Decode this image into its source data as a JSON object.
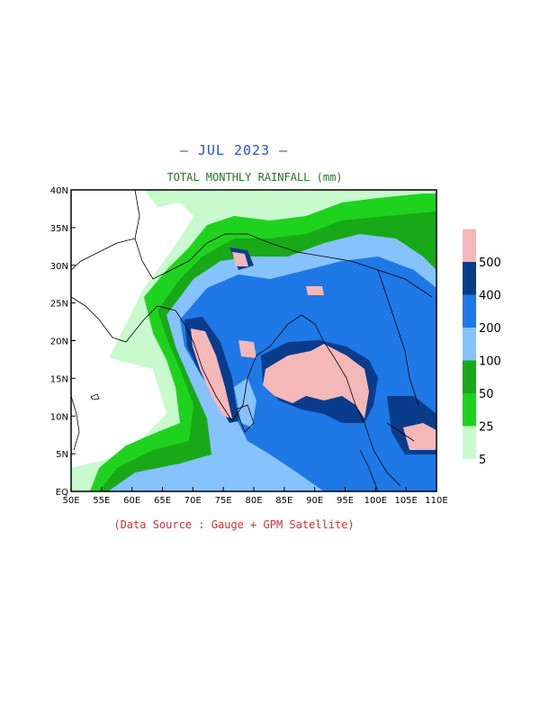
{
  "header": {
    "title": "– JUL 2023 –",
    "subtitle": "TOTAL MONTHLY RAINFALL (mm)"
  },
  "footer": {
    "source": "(Data Source : Gauge + GPM Satellite)"
  },
  "axes": {
    "x_ticks": [
      "50E",
      "55E",
      "60E",
      "65E",
      "70E",
      "75E",
      "80E",
      "85E",
      "90E",
      "95E",
      "100E",
      "105E",
      "110E"
    ],
    "y_ticks": [
      "40N",
      "35N",
      "30N",
      "25N",
      "20N",
      "15N",
      "10N",
      "5N",
      "EQ"
    ]
  },
  "legend": {
    "bins": [
      {
        "label": "5",
        "color": "#c8facd"
      },
      {
        "label": "25",
        "color": "#1ed21e"
      },
      {
        "label": "50",
        "color": "#18a818"
      },
      {
        "label": "100",
        "color": "#86c2fd"
      },
      {
        "label": "200",
        "color": "#1e78e6"
      },
      {
        "label": "400",
        "color": "#0a3c8c"
      },
      {
        "label": "500",
        "color": "#f5b8b8"
      }
    ]
  }
}
